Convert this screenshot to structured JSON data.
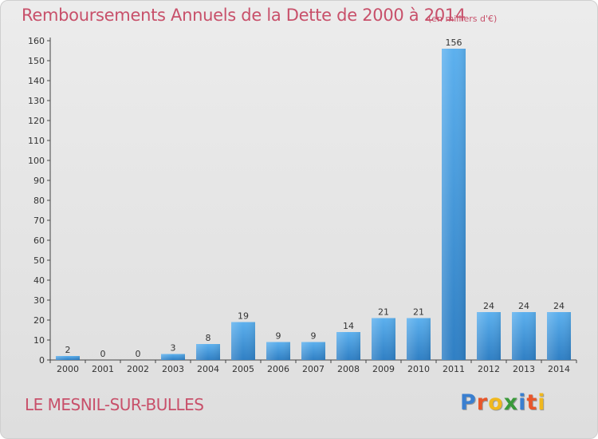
{
  "title": "Remboursements Annuels de la Dette de 2000 à 2014",
  "subtitle": "(en milliers d'€)",
  "commune": "LE MESNIL-SUR-BULLES",
  "logo": {
    "letters": [
      "P",
      "r",
      "o",
      "x",
      "i",
      "t",
      "i"
    ],
    "colors": [
      "#3a7fd0",
      "#e8562a",
      "#f0b81e",
      "#3a9a3a",
      "#3a7fd0",
      "#e8562a",
      "#f0b81e"
    ]
  },
  "chart_data": {
    "type": "bar",
    "categories": [
      "2000",
      "2001",
      "2002",
      "2003",
      "2004",
      "2005",
      "2006",
      "2007",
      "2008",
      "2009",
      "2010",
      "2011",
      "2012",
      "2013",
      "2014"
    ],
    "values": [
      2,
      0,
      0,
      3,
      8,
      19,
      9,
      9,
      14,
      21,
      21,
      156,
      24,
      24,
      24
    ],
    "ylim": [
      0,
      160
    ],
    "yticks": [
      0,
      10,
      20,
      30,
      40,
      50,
      60,
      70,
      80,
      90,
      100,
      110,
      120,
      130,
      140,
      150,
      160
    ],
    "grid": false,
    "bar_color": "#4a9ee0"
  }
}
